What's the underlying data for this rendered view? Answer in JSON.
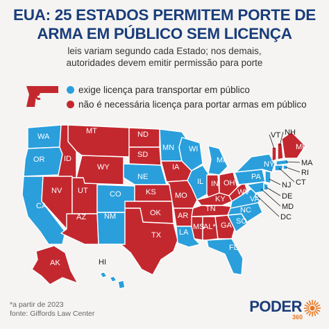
{
  "title_line1": "EUA: 25 ESTADOS PERMITEM PORTE DE",
  "title_line2": "ARMA EM PÚBLICO SEM LICENÇA",
  "subtitle_line1": "leis variam segundo cada Estado; nos demais,",
  "subtitle_line2": "autoridades devem emitir permissão para porte",
  "legend": {
    "license": {
      "label": "exige licença para transportar em público",
      "color": "#2a9fdc"
    },
    "no_license": {
      "label": "não é necessária licença para portar armas em público",
      "color": "#c3282f"
    }
  },
  "gun_icon": "handgun-icon",
  "states": [
    {
      "code": "WA",
      "status": "license"
    },
    {
      "code": "OR",
      "status": "license"
    },
    {
      "code": "CA",
      "status": "license"
    },
    {
      "code": "MT",
      "status": "no_license"
    },
    {
      "code": "ID",
      "status": "no_license"
    },
    {
      "code": "NV",
      "status": "no_license"
    },
    {
      "code": "UT",
      "status": "no_license"
    },
    {
      "code": "WY",
      "status": "no_license"
    },
    {
      "code": "AZ",
      "status": "no_license"
    },
    {
      "code": "CO",
      "status": "license"
    },
    {
      "code": "NM",
      "status": "license"
    },
    {
      "code": "ND",
      "status": "no_license"
    },
    {
      "code": "SD",
      "status": "no_license"
    },
    {
      "code": "NE",
      "status": "license"
    },
    {
      "code": "KS",
      "status": "no_license"
    },
    {
      "code": "OK",
      "status": "no_license"
    },
    {
      "code": "TX",
      "status": "no_license"
    },
    {
      "code": "MN",
      "status": "license"
    },
    {
      "code": "IA",
      "status": "no_license"
    },
    {
      "code": "MO",
      "status": "no_license"
    },
    {
      "code": "AR",
      "status": "no_license"
    },
    {
      "code": "LA",
      "status": "license"
    },
    {
      "code": "WI",
      "status": "license"
    },
    {
      "code": "IL",
      "status": "license"
    },
    {
      "code": "MI",
      "status": "license"
    },
    {
      "code": "IN",
      "status": "no_license"
    },
    {
      "code": "OH",
      "status": "no_license"
    },
    {
      "code": "KY",
      "status": "no_license"
    },
    {
      "code": "TN",
      "status": "no_license"
    },
    {
      "code": "MS",
      "status": "no_license"
    },
    {
      "code": "AL",
      "label": "AL*",
      "status": "no_license"
    },
    {
      "code": "GA",
      "status": "no_license"
    },
    {
      "code": "FL",
      "status": "license"
    },
    {
      "code": "SC",
      "status": "license"
    },
    {
      "code": "NC",
      "status": "license"
    },
    {
      "code": "VA",
      "status": "license"
    },
    {
      "code": "WV",
      "status": "no_license"
    },
    {
      "code": "PA",
      "status": "license"
    },
    {
      "code": "NY",
      "status": "license"
    },
    {
      "code": "VT",
      "status": "no_license"
    },
    {
      "code": "NH",
      "status": "no_license"
    },
    {
      "code": "ME",
      "status": "no_license"
    },
    {
      "code": "MA",
      "status": "license"
    },
    {
      "code": "RI",
      "status": "license"
    },
    {
      "code": "CT",
      "status": "license"
    },
    {
      "code": "NJ",
      "status": "license"
    },
    {
      "code": "DE",
      "status": "license"
    },
    {
      "code": "MD",
      "status": "license"
    },
    {
      "code": "DC",
      "status": "license"
    },
    {
      "code": "AK",
      "status": "no_license"
    },
    {
      "code": "HI",
      "status": "license"
    }
  ],
  "footnote": "*a partir de 2023",
  "source": "fonte: Giffords Law Center",
  "logo": {
    "name": "PODER",
    "sub": "360"
  }
}
